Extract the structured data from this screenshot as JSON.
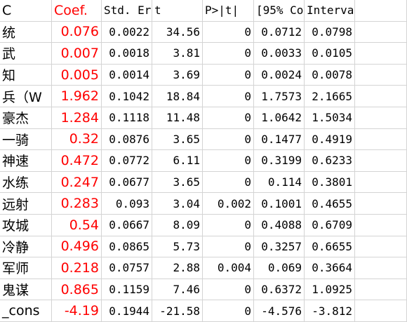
{
  "table": {
    "header": [
      "C",
      "Coef.",
      "Std. Er",
      "t",
      "P>|t|",
      "[95% Co",
      "Interval]"
    ],
    "rows": [
      [
        "统",
        "0.076",
        "0.0022",
        "34.56",
        "0",
        "0.0712",
        "0.0798"
      ],
      [
        "武",
        "0.007",
        "0.0018",
        "3.81",
        "0",
        "0.0033",
        "0.0105"
      ],
      [
        "知",
        "0.005",
        "0.0014",
        "3.69",
        "0",
        "0.0024",
        "0.0078"
      ],
      [
        "兵（W",
        "1.962",
        "0.1042",
        "18.84",
        "0",
        "1.7573",
        "2.1665"
      ],
      [
        "豪杰",
        "1.284",
        "0.1118",
        "11.48",
        "0",
        "1.0642",
        "1.5034"
      ],
      [
        "一骑",
        "0.32",
        "0.0876",
        "3.65",
        "0",
        "0.1477",
        "0.4919"
      ],
      [
        "神速",
        "0.472",
        "0.0772",
        "6.11",
        "0",
        "0.3199",
        "0.6233"
      ],
      [
        "水练",
        "0.247",
        "0.0677",
        "3.65",
        "0",
        "0.114",
        "0.3801"
      ],
      [
        "远射",
        "0.283",
        "0.093",
        "3.04",
        "0.002",
        "0.1001",
        "0.4655"
      ],
      [
        "攻城",
        "0.54",
        "0.0667",
        "8.09",
        "0",
        "0.4088",
        "0.6709"
      ],
      [
        "冷静",
        "0.496",
        "0.0865",
        "5.73",
        "0",
        "0.3257",
        "0.6655"
      ],
      [
        "军师",
        "0.218",
        "0.0757",
        "2.88",
        "0.004",
        "0.069",
        "0.3664"
      ],
      [
        "鬼谋",
        "0.865",
        "0.1159",
        "7.46",
        "0",
        "0.6372",
        "1.0925"
      ],
      [
        "_cons",
        "-4.19",
        "0.1944",
        "-21.58",
        "0",
        "-4.576",
        "-3.812"
      ]
    ]
  }
}
